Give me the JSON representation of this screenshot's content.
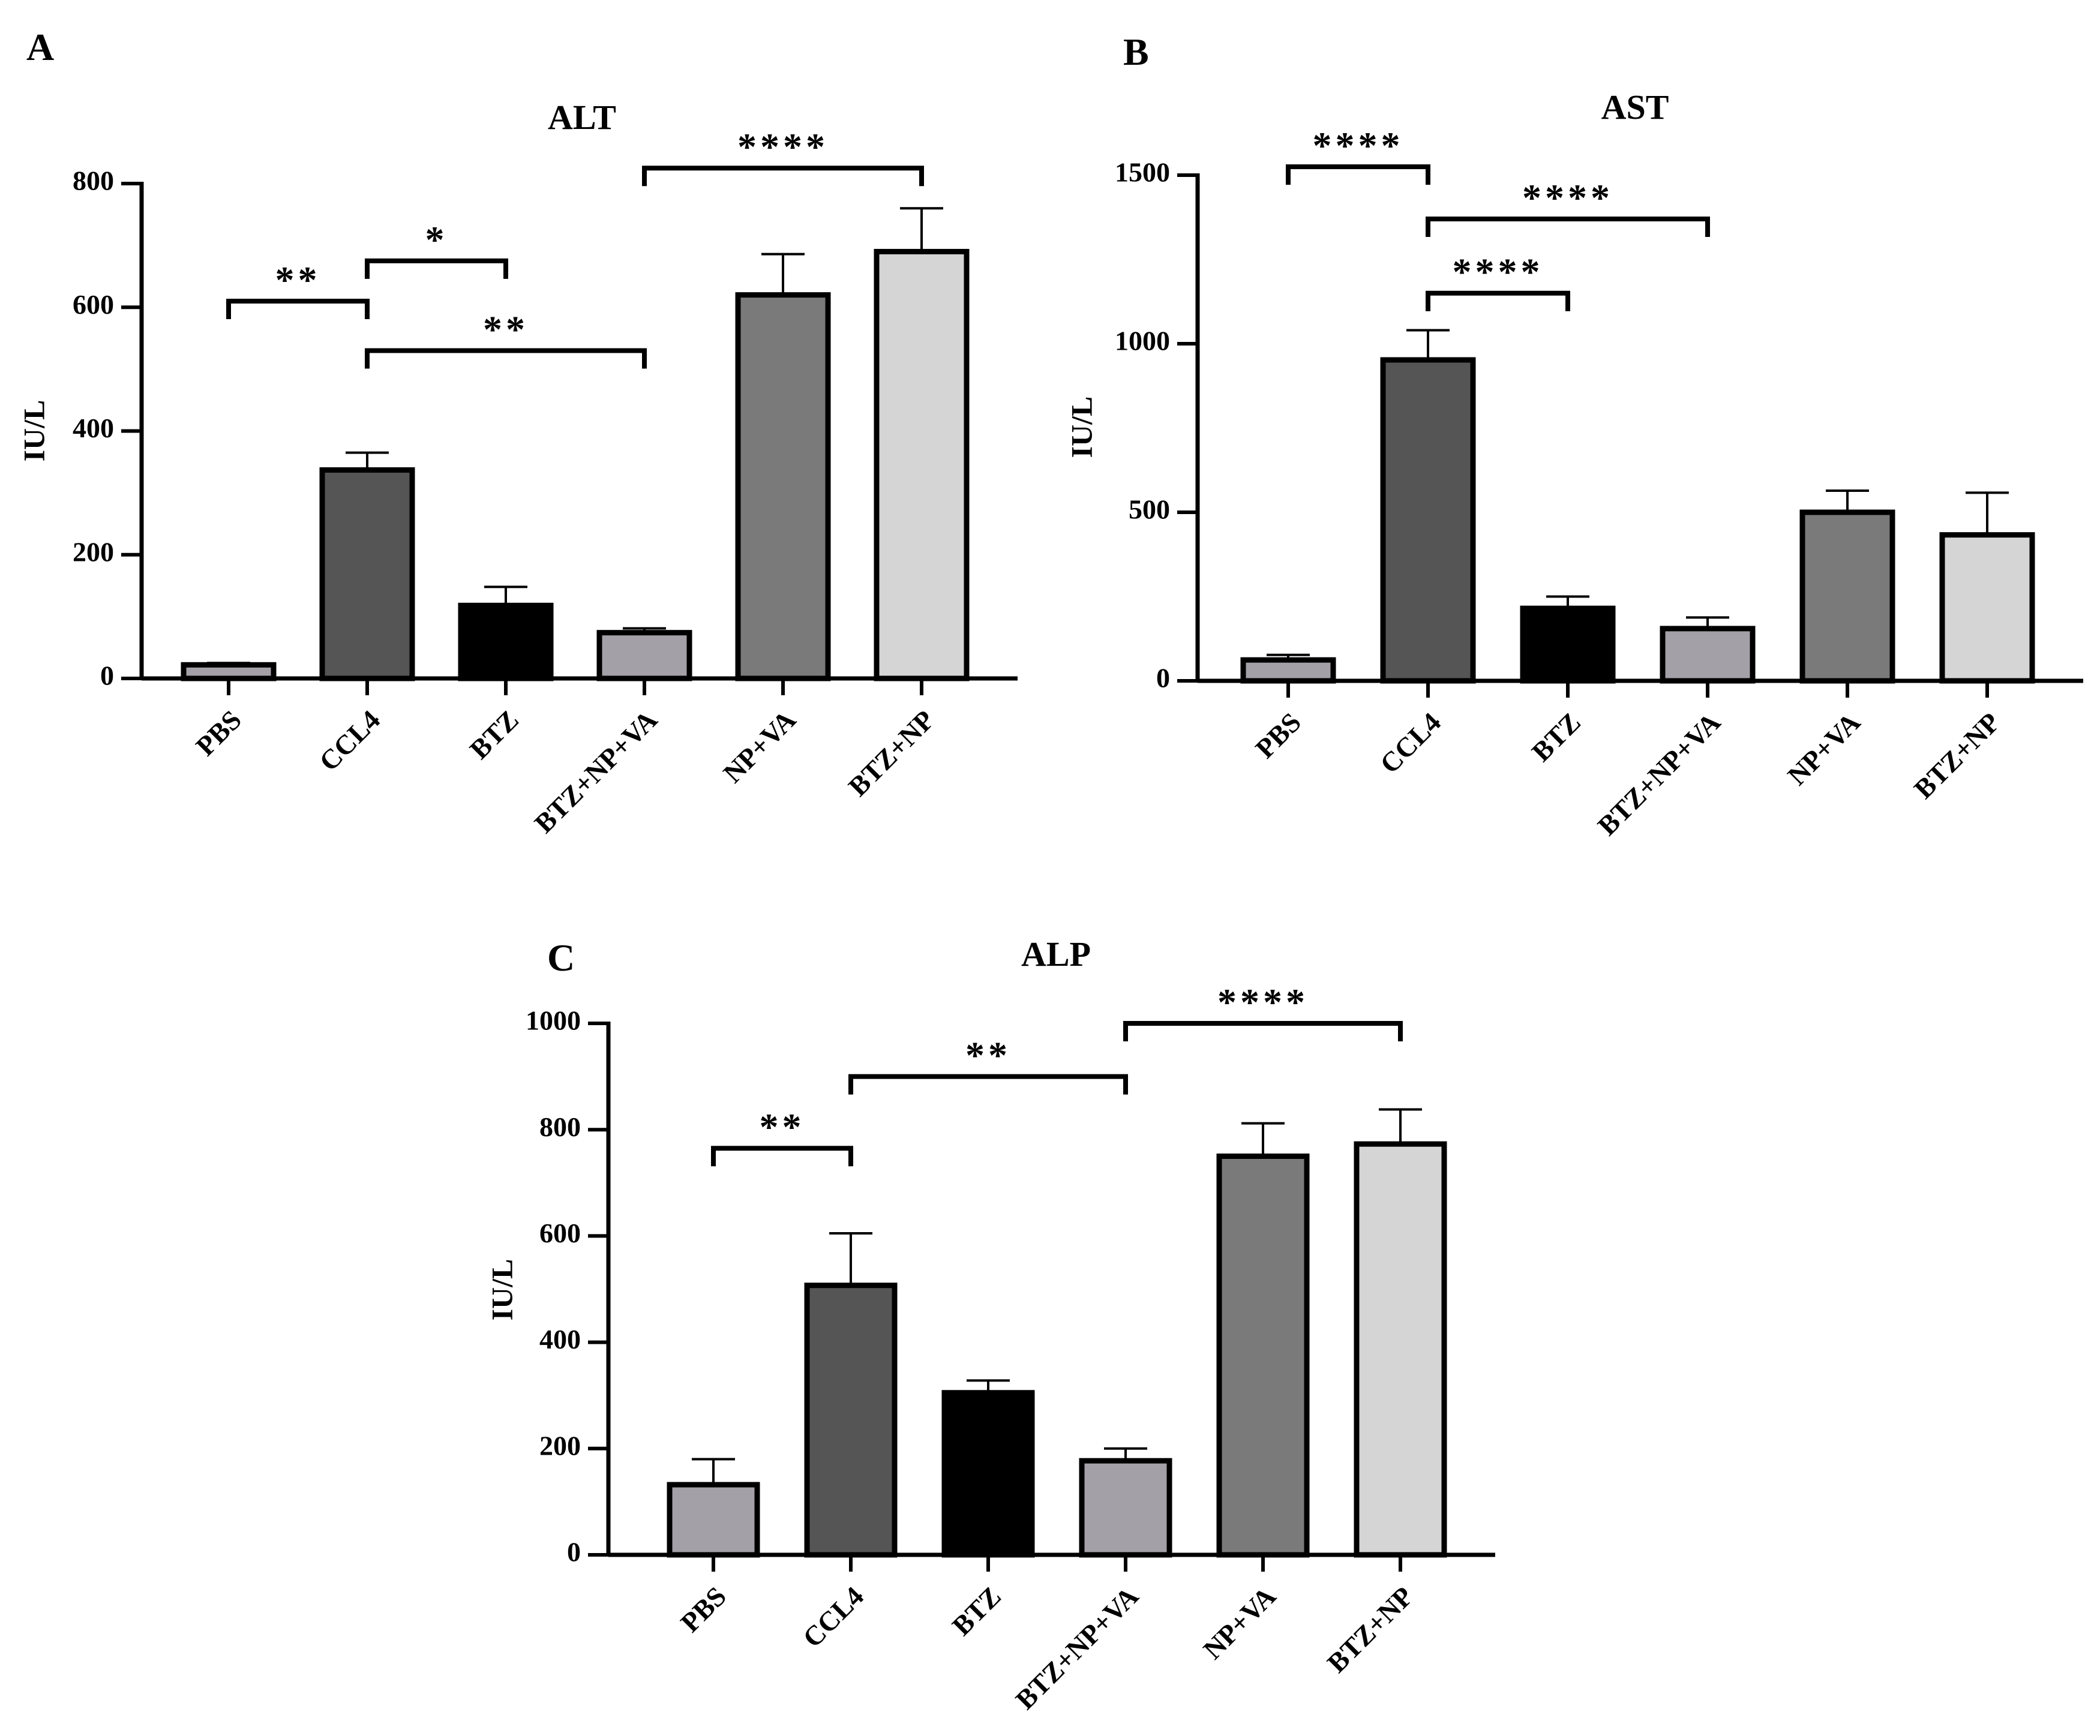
{
  "figure": {
    "background": "#ffffff",
    "bar_colors": [
      "#a3a1a7",
      "#555555",
      "#000000",
      "#a3a1a7",
      "#7a7a7a",
      "#d5d5d5"
    ]
  },
  "chart_data": [
    {
      "panel": "A",
      "type": "bar",
      "title": "ALT",
      "ylabel": "IU/L",
      "xlabel": "",
      "ylim": [
        0,
        800
      ],
      "yticks": [
        0,
        200,
        400,
        600,
        800
      ],
      "categories": [
        "PBS",
        "CCL4",
        "BTZ",
        "BTZ+NP+VA",
        "NP+VA",
        "BTZ+NP"
      ],
      "values": [
        22,
        337,
        118,
        74,
        620,
        690
      ],
      "errors": [
        3,
        28,
        30,
        7,
        66,
        70
      ],
      "significance": [
        {
          "from": 0,
          "to": 1,
          "y": 610,
          "label": "**"
        },
        {
          "from": 1,
          "to": 2,
          "y": 675,
          "label": "*"
        },
        {
          "from": 1,
          "to": 3,
          "y": 530,
          "label": "**"
        },
        {
          "from": 3,
          "to": 5,
          "y": 825,
          "label": "****"
        }
      ]
    },
    {
      "panel": "B",
      "type": "bar",
      "title": "AST",
      "ylabel": "IU/L",
      "xlabel": "",
      "ylim": [
        0,
        1500
      ],
      "yticks": [
        0,
        500,
        1000,
        1500
      ],
      "categories": [
        "PBS",
        "CCL4",
        "BTZ",
        "BTZ+NP+VA",
        "NP+VA",
        "BTZ+NP"
      ],
      "values": [
        62,
        952,
        215,
        155,
        500,
        433
      ],
      "errors": [
        15,
        88,
        35,
        33,
        64,
        125
      ],
      "significance": [
        {
          "from": 0,
          "to": 1,
          "y": 1525,
          "label": "****"
        },
        {
          "from": 1,
          "to": 3,
          "y": 1370,
          "label": "****"
        },
        {
          "from": 1,
          "to": 2,
          "y": 1150,
          "label": "****"
        }
      ]
    },
    {
      "panel": "C",
      "type": "bar",
      "title": "ALP",
      "ylabel": "IU/L",
      "xlabel": "",
      "ylim": [
        0,
        1000
      ],
      "yticks": [
        0,
        200,
        400,
        600,
        800,
        1000
      ],
      "categories": [
        "PBS",
        "CCL4",
        "BTZ",
        "BTZ+NP+VA",
        "NP+VA",
        "BTZ+NP"
      ],
      "values": [
        132,
        507,
        305,
        177,
        750,
        773
      ],
      "errors": [
        48,
        98,
        23,
        23,
        62,
        65
      ],
      "significance": [
        {
          "from": 0,
          "to": 1,
          "y": 765,
          "label": "**"
        },
        {
          "from": 1,
          "to": 3,
          "y": 900,
          "label": "**"
        },
        {
          "from": 3,
          "to": 5,
          "y": 1000,
          "label": "****"
        }
      ]
    }
  ]
}
